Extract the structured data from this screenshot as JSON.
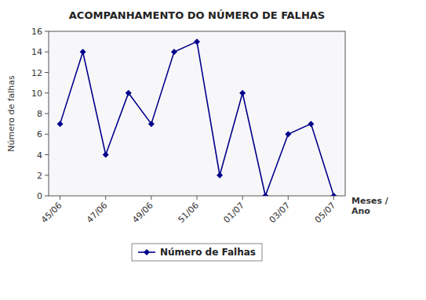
{
  "chart_data": {
    "type": "line",
    "title": "ACOMPANHAMENTO DO NÚMERO DE FALHAS",
    "xlabel": "Meses /\nAno",
    "ylabel": "Número de falhas",
    "categories": [
      "45/06",
      null,
      "47/06",
      null,
      "49/06",
      null,
      "51/06",
      null,
      "01/07",
      null,
      "03/07",
      null,
      "05/07"
    ],
    "series": [
      {
        "name": "Número de Falhas",
        "color": "#00008B",
        "marker": "diamond",
        "values": [
          7,
          14,
          4,
          10,
          7,
          14,
          15,
          2,
          10,
          0,
          6,
          7,
          0
        ]
      }
    ],
    "ylim": [
      0,
      16
    ],
    "yticks": [
      0,
      2,
      4,
      6,
      8,
      10,
      12,
      14,
      16
    ],
    "grid": false,
    "legend": "bottom"
  }
}
